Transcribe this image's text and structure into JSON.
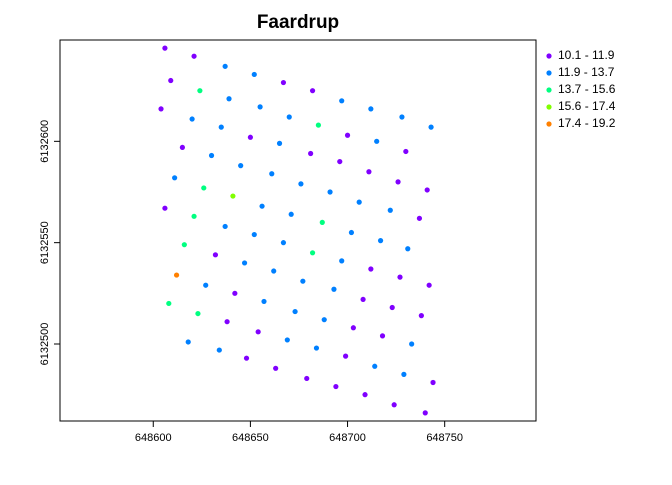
{
  "chart_data": {
    "type": "scatter",
    "title": "Faardrup",
    "xlim": [
      648552,
      648797
    ],
    "ylim": [
      6132462,
      6132650
    ],
    "xticks": [
      648600,
      648650,
      648700,
      648750
    ],
    "yticks": [
      6132500,
      6132550,
      6132600
    ],
    "legend": "outside-right",
    "series": [
      {
        "name": "10.1 - 11.9",
        "color": "#8000ff",
        "x": [
          648606,
          648621,
          648667,
          648682,
          648609,
          648700,
          648730,
          648604,
          648650,
          648681,
          648696,
          648711,
          648726,
          648741,
          648615,
          648737,
          648606,
          648712,
          648727,
          648742,
          648632,
          648708,
          648723,
          648738,
          648642,
          648703,
          648718,
          648638,
          648654,
          648699,
          648744,
          648648,
          648663,
          648679,
          648694,
          648709,
          648724,
          648740
        ],
        "y": [
          6132646,
          6132642,
          6132629,
          6132625,
          6132630,
          6132603,
          6132595,
          6132616,
          6132602,
          6132594,
          6132590,
          6132585,
          6132580,
          6132576,
          6132597,
          6132562,
          6132567,
          6132537,
          6132533,
          6132529,
          6132544,
          6132522,
          6132518,
          6132514,
          6132525,
          6132508,
          6132504,
          6132511,
          6132506,
          6132494,
          6132481,
          6132493,
          6132488,
          6132483,
          6132479,
          6132475,
          6132470,
          6132466
        ]
      },
      {
        "name": "11.9 - 13.7",
        "color": "#0080ff",
        "x": [
          648637,
          648652,
          648697,
          648712,
          648728,
          648743,
          648639,
          648655,
          648670,
          648715,
          648620,
          648635,
          648665,
          648630,
          648645,
          648661,
          648676,
          648691,
          648706,
          648722,
          648611,
          648656,
          648671,
          648702,
          648717,
          648731,
          648637,
          648652,
          648667,
          648697,
          648647,
          648662,
          648677,
          648693,
          648627,
          648657,
          648673,
          648688,
          648733,
          648669,
          648684,
          648714,
          648729,
          648618,
          648634
        ],
        "y": [
          6132637,
          6132633,
          6132620,
          6132616,
          6132612,
          6132607,
          6132621,
          6132617,
          6132612,
          6132600,
          6132611,
          6132607,
          6132599,
          6132593,
          6132588,
          6132584,
          6132579,
          6132575,
          6132570,
          6132566,
          6132582,
          6132568,
          6132564,
          6132555,
          6132551,
          6132547,
          6132558,
          6132554,
          6132550,
          6132541,
          6132540,
          6132536,
          6132531,
          6132527,
          6132529,
          6132521,
          6132516,
          6132512,
          6132500,
          6132502,
          6132498,
          6132489,
          6132485,
          6132501,
          6132497
        ]
      },
      {
        "name": "13.7 - 15.6",
        "color": "#00ff80",
        "x": [
          648624,
          648685,
          648626,
          648687,
          648621,
          648682,
          648616,
          648608,
          648623
        ],
        "y": [
          6132625,
          6132608,
          6132577,
          6132560,
          6132563,
          6132545,
          6132549,
          6132520,
          6132515
        ]
      },
      {
        "name": "15.6 - 17.4",
        "color": "#80ff00",
        "x": [
          648641
        ],
        "y": [
          6132573
        ]
      },
      {
        "name": "17.4 - 19.2",
        "color": "#ff8000",
        "x": [
          648612
        ],
        "y": [
          6132534
        ]
      }
    ]
  }
}
